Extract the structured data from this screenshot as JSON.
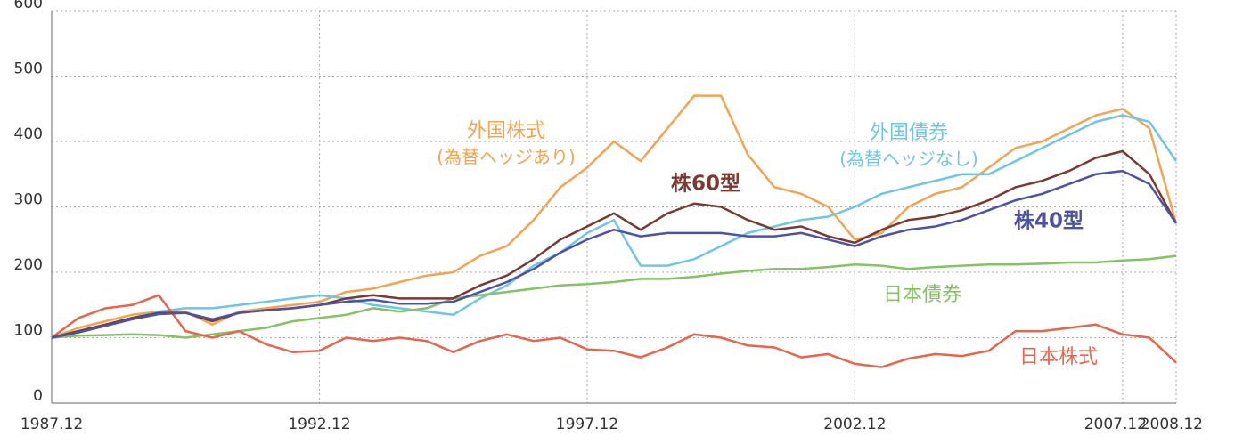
{
  "chart_data": {
    "type": "line",
    "x": [
      "1987.12",
      "1988.06",
      "1988.12",
      "1989.06",
      "1989.12",
      "1990.06",
      "1990.12",
      "1991.06",
      "1991.12",
      "1992.06",
      "1992.12",
      "1993.06",
      "1993.12",
      "1994.06",
      "1994.12",
      "1995.06",
      "1995.12",
      "1996.06",
      "1996.12",
      "1997.06",
      "1997.12",
      "1998.06",
      "1998.12",
      "1999.06",
      "1999.12",
      "2000.06",
      "2000.12",
      "2001.06",
      "2001.12",
      "2002.06",
      "2002.12",
      "2003.06",
      "2003.12",
      "2004.06",
      "2004.12",
      "2005.06",
      "2005.12",
      "2006.06",
      "2006.12",
      "2007.06",
      "2007.12",
      "2008.06",
      "2008.12"
    ],
    "series": [
      {
        "name": "外国株式",
        "note": "(為替ヘッジあり)",
        "color": "#f2a452",
        "values": [
          100,
          115,
          125,
          135,
          140,
          140,
          120,
          140,
          145,
          150,
          155,
          170,
          175,
          185,
          195,
          200,
          225,
          240,
          280,
          330,
          360,
          400,
          370,
          420,
          470,
          470,
          380,
          330,
          320,
          300,
          250,
          260,
          300,
          320,
          330,
          360,
          390,
          400,
          420,
          440,
          450,
          420,
          275
        ]
      },
      {
        "name": "外国債券",
        "note": "(為替ヘッジなし)",
        "color": "#6ec6e2",
        "values": [
          100,
          110,
          120,
          130,
          140,
          145,
          145,
          150,
          155,
          160,
          165,
          160,
          150,
          145,
          140,
          135,
          160,
          180,
          210,
          230,
          260,
          280,
          210,
          210,
          220,
          240,
          260,
          270,
          280,
          285,
          300,
          320,
          330,
          340,
          350,
          350,
          370,
          390,
          410,
          430,
          440,
          430,
          370
        ]
      },
      {
        "name": "日本債券",
        "color": "#84c262",
        "values": [
          100,
          103,
          104,
          105,
          104,
          100,
          105,
          110,
          115,
          125,
          130,
          135,
          145,
          140,
          145,
          160,
          165,
          170,
          175,
          180,
          182,
          185,
          190,
          190,
          193,
          198,
          202,
          205,
          205,
          208,
          212,
          210,
          205,
          208,
          210,
          212,
          212,
          213,
          215,
          215,
          218,
          220,
          225
        ]
      },
      {
        "name": "日本株式",
        "color": "#e8644a",
        "values": [
          100,
          130,
          145,
          150,
          165,
          110,
          100,
          110,
          90,
          78,
          80,
          100,
          95,
          100,
          95,
          78,
          95,
          105,
          95,
          100,
          82,
          80,
          70,
          85,
          105,
          100,
          88,
          85,
          70,
          75,
          60,
          55,
          68,
          75,
          72,
          80,
          110,
          110,
          115,
          120,
          105,
          100,
          62
        ]
      },
      {
        "name": "株60型",
        "color": "#7a3a32",
        "values": [
          100,
          110,
          120,
          130,
          138,
          138,
          125,
          138,
          142,
          145,
          150,
          160,
          165,
          160,
          160,
          160,
          180,
          195,
          220,
          250,
          270,
          290,
          265,
          290,
          305,
          300,
          280,
          265,
          270,
          255,
          245,
          265,
          280,
          285,
          295,
          310,
          330,
          340,
          355,
          375,
          385,
          350,
          275
        ]
      },
      {
        "name": "株40型",
        "color": "#4d52a3",
        "values": [
          100,
          108,
          118,
          128,
          136,
          138,
          128,
          138,
          142,
          145,
          150,
          155,
          158,
          152,
          152,
          155,
          170,
          185,
          205,
          230,
          250,
          265,
          255,
          260,
          260,
          260,
          255,
          255,
          260,
          250,
          240,
          255,
          265,
          270,
          280,
          295,
          310,
          320,
          335,
          350,
          355,
          335,
          275
        ]
      }
    ],
    "ylim": [
      0,
      600
    ],
    "yticks": [
      0,
      100,
      200,
      300,
      400,
      500,
      600
    ],
    "xlim": [
      "1987.12",
      "2008.12"
    ],
    "xticks": [
      "1987.12",
      "1992.12",
      "1997.12",
      "2002.12",
      "2007.12",
      "2008.12"
    ],
    "grid": true
  }
}
